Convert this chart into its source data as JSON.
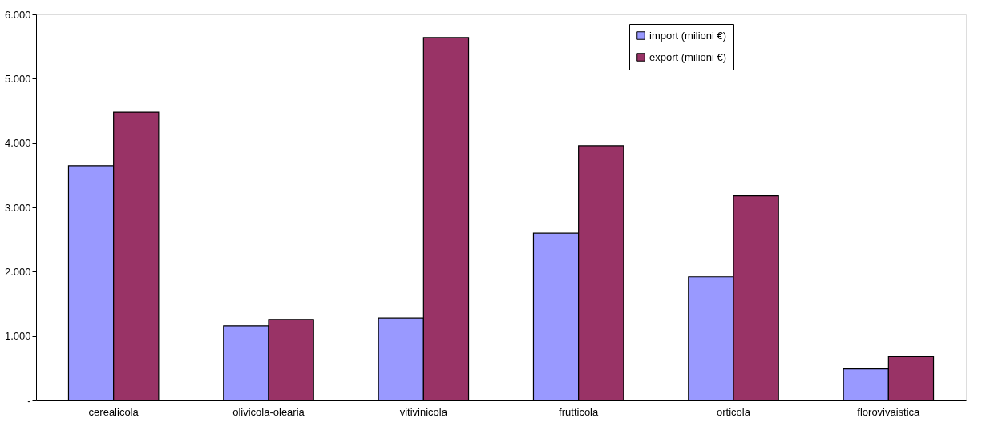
{
  "chart_data": {
    "type": "bar",
    "categories": [
      "cerealicola",
      "olivicola-olearia",
      "vitivinicola",
      "frutticola",
      "orticola",
      "florovivaistica"
    ],
    "series": [
      {
        "name": "import (milioni €)",
        "color": "#9999ff",
        "values": [
          3650,
          1160,
          1280,
          2600,
          1920,
          490
        ]
      },
      {
        "name": "export (milioni €)",
        "color": "#993366",
        "values": [
          4480,
          1260,
          5640,
          3960,
          3180,
          680
        ]
      }
    ],
    "ylim": [
      0,
      6000
    ],
    "yticks": [
      {
        "value": 0,
        "label": "-"
      },
      {
        "value": 1000,
        "label": "1.000"
      },
      {
        "value": 2000,
        "label": "2.000"
      },
      {
        "value": 3000,
        "label": "3.000"
      },
      {
        "value": 4000,
        "label": "4.000"
      },
      {
        "value": 5000,
        "label": "5.000"
      },
      {
        "value": 6000,
        "label": "6.000"
      }
    ],
    "grid": false,
    "legend": "top right"
  }
}
